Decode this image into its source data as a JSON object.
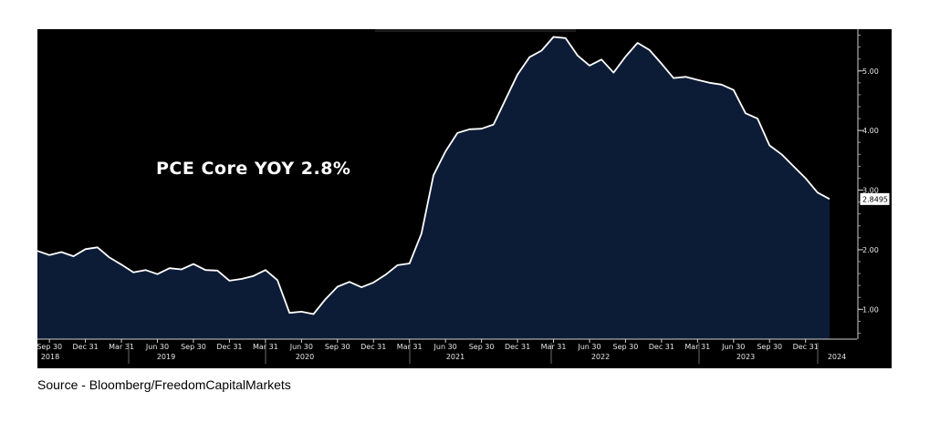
{
  "chart_data": {
    "type": "area",
    "title": "PCE Core YOY 2.8%",
    "last_value_label": "2.8495",
    "ylim": [
      0.5,
      5.7
    ],
    "y_ticks": [
      "1.00",
      "2.00",
      "3.00",
      "4.00",
      "5.00"
    ],
    "x_tick_labels": [
      "Sep 30",
      "Dec 31",
      "Mar 31",
      "Jun 30",
      "Sep 30",
      "Dec 31",
      "Mar 31",
      "Jun 30",
      "Sep 30",
      "Dec 31",
      "Mar 31",
      "Jun 30",
      "Sep 30",
      "Dec 31",
      "Mar 31",
      "Jun 30",
      "Sep 30",
      "Dec 31",
      "Mar 31",
      "Jun 30",
      "Sep 30",
      "Dec 31"
    ],
    "year_labels": [
      "2018",
      "2019",
      "2020",
      "2021",
      "2022",
      "2023",
      "2024"
    ],
    "series": [
      {
        "values": [
          1.98,
          1.91,
          1.96,
          1.89,
          2.01,
          2.04,
          1.87,
          1.75,
          1.62,
          1.66,
          1.59,
          1.69,
          1.67,
          1.76,
          1.66,
          1.65,
          1.48,
          1.51,
          1.56,
          1.66,
          1.49,
          0.94,
          0.96,
          0.92,
          1.17,
          1.38,
          1.46,
          1.37,
          1.45,
          1.58,
          1.74,
          1.77,
          2.27,
          3.25,
          3.65,
          3.96,
          4.02,
          4.03,
          4.1,
          4.52,
          4.94,
          5.23,
          5.34,
          5.57,
          5.55,
          5.26,
          5.09,
          5.19,
          4.97,
          5.24,
          5.47,
          5.35,
          5.12,
          4.88,
          4.9,
          4.85,
          4.8,
          4.77,
          4.68,
          4.29,
          4.2,
          3.75,
          3.6,
          3.4,
          3.2,
          2.96,
          2.85
        ]
      }
    ]
  },
  "colors": {
    "background": "#000000",
    "fill": "#0d1c36",
    "line": "#ffffff"
  },
  "source": "Source - Bloomberg/FreedomCapitalMarkets"
}
